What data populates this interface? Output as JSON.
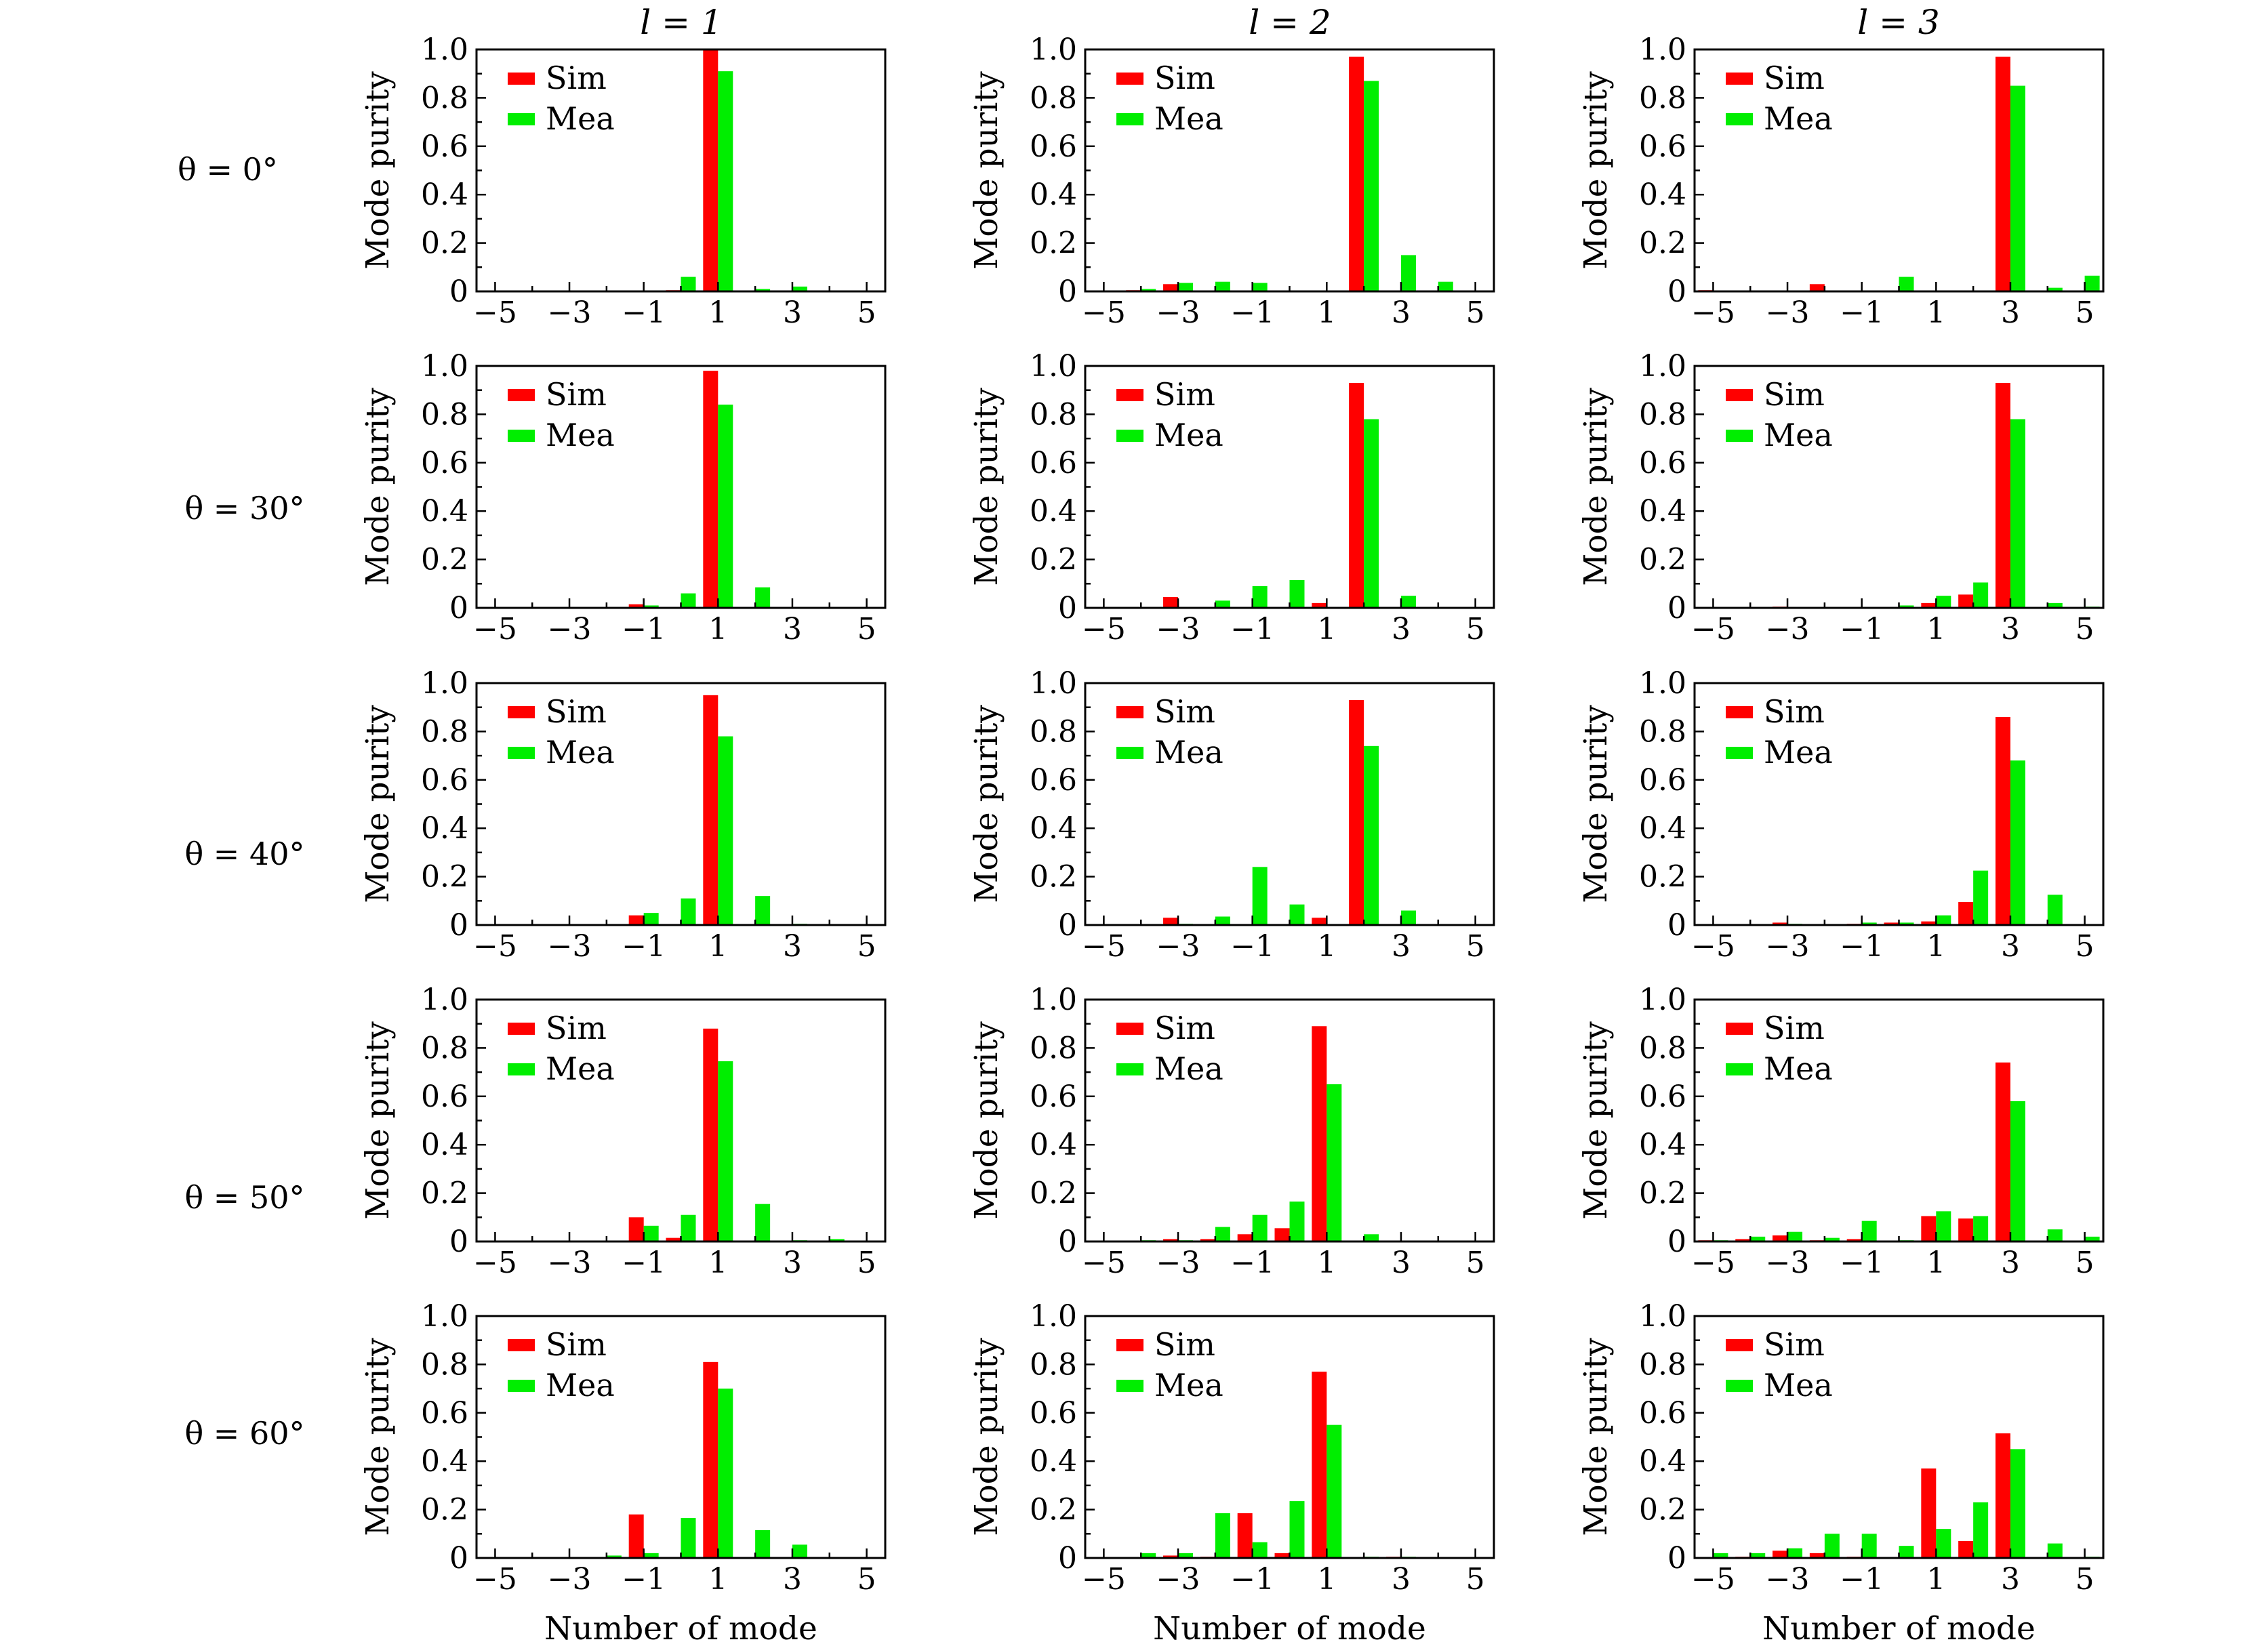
{
  "figure": {
    "column_titles": [
      "l = 1",
      "l = 2",
      "l = 3"
    ],
    "row_labels": [
      "θ = 0°",
      "θ = 30°",
      "θ = 40°",
      "θ = 50°",
      "θ = 60°"
    ],
    "series_names": [
      "Sim",
      "Mea"
    ],
    "ylabel": "Mode purity",
    "xlabel": "Number of mode",
    "colors": {
      "sim": "#ff0000",
      "mea": "#00ee00"
    }
  },
  "chart_data": [
    {
      "type": "bar",
      "row": 0,
      "col": 0,
      "title": "θ = 0°, l = 1",
      "xlabel": "Number of mode",
      "ylabel": "Mode purity",
      "categories": [
        -5,
        -4,
        -3,
        -2,
        -1,
        0,
        1,
        2,
        3,
        4,
        5
      ],
      "xticks": [
        -5,
        -3,
        -1,
        1,
        3,
        5
      ],
      "ylim": [
        0,
        1.0
      ],
      "yticks": [
        0,
        0.2,
        0.4,
        0.6,
        0.8,
        1.0
      ],
      "series": [
        {
          "name": "Sim",
          "values": [
            0,
            0,
            0,
            0,
            0,
            0.005,
            1.0,
            0.0,
            0.0,
            0,
            0
          ]
        },
        {
          "name": "Mea",
          "values": [
            0,
            0,
            0,
            0,
            0,
            0.06,
            0.91,
            0.01,
            0.02,
            0,
            0
          ]
        }
      ]
    },
    {
      "type": "bar",
      "row": 0,
      "col": 1,
      "title": "θ = 0°, l = 2",
      "xlabel": "Number of mode",
      "ylabel": "Mode purity",
      "categories": [
        -5,
        -4,
        -3,
        -2,
        -1,
        0,
        1,
        2,
        3,
        4,
        5
      ],
      "xticks": [
        -5,
        -3,
        -1,
        1,
        3,
        5
      ],
      "ylim": [
        0,
        1.0
      ],
      "yticks": [
        0,
        0.2,
        0.4,
        0.6,
        0.8,
        1.0
      ],
      "series": [
        {
          "name": "Sim",
          "values": [
            0,
            0.005,
            0.03,
            0.0,
            0.0,
            0,
            0.0,
            0.97,
            0.0,
            0,
            0
          ]
        },
        {
          "name": "Mea",
          "values": [
            0,
            0.01,
            0.035,
            0.04,
            0.035,
            0,
            0.0,
            0.87,
            0.15,
            0.04,
            0
          ]
        }
      ]
    },
    {
      "type": "bar",
      "row": 0,
      "col": 2,
      "title": "θ = 0°, l = 3",
      "xlabel": "Number of mode",
      "ylabel": "Mode purity",
      "categories": [
        -5,
        -4,
        -3,
        -2,
        -1,
        0,
        1,
        2,
        3,
        4,
        5
      ],
      "xticks": [
        -5,
        -3,
        -1,
        1,
        3,
        5
      ],
      "ylim": [
        0,
        1.0
      ],
      "yticks": [
        0,
        0.2,
        0.4,
        0.6,
        0.8,
        1.0
      ],
      "series": [
        {
          "name": "Sim",
          "values": [
            0.005,
            0,
            0,
            0.03,
            0,
            0,
            0,
            0,
            0.97,
            0,
            0
          ]
        },
        {
          "name": "Mea",
          "values": [
            0,
            0,
            0,
            0,
            0,
            0.06,
            0,
            0,
            0.85,
            0.015,
            0.065
          ]
        }
      ]
    },
    {
      "type": "bar",
      "row": 1,
      "col": 0,
      "title": "θ = 30°, l = 1",
      "xlabel": "Number of mode",
      "ylabel": "Mode purity",
      "categories": [
        -5,
        -4,
        -3,
        -2,
        -1,
        0,
        1,
        2,
        3,
        4,
        5
      ],
      "xticks": [
        -5,
        -3,
        -1,
        1,
        3,
        5
      ],
      "ylim": [
        0,
        1.0
      ],
      "yticks": [
        0,
        0.2,
        0.4,
        0.6,
        0.8,
        1.0
      ],
      "series": [
        {
          "name": "Sim",
          "values": [
            0,
            0,
            0,
            0,
            0.015,
            0.0,
            0.98,
            0.0,
            0,
            0,
            0
          ]
        },
        {
          "name": "Mea",
          "values": [
            0,
            0,
            0,
            0,
            0.01,
            0.06,
            0.84,
            0.085,
            0,
            0,
            0
          ]
        }
      ]
    },
    {
      "type": "bar",
      "row": 1,
      "col": 1,
      "title": "θ = 30°, l = 2",
      "xlabel": "Number of mode",
      "ylabel": "Mode purity",
      "categories": [
        -5,
        -4,
        -3,
        -2,
        -1,
        0,
        1,
        2,
        3,
        4,
        5
      ],
      "xticks": [
        -5,
        -3,
        -1,
        1,
        3,
        5
      ],
      "ylim": [
        0,
        1.0
      ],
      "yticks": [
        0,
        0.2,
        0.4,
        0.6,
        0.8,
        1.0
      ],
      "series": [
        {
          "name": "Sim",
          "values": [
            0,
            0,
            0.045,
            0,
            0,
            0,
            0.02,
            0.93,
            0,
            0,
            0
          ]
        },
        {
          "name": "Mea",
          "values": [
            0,
            0,
            0,
            0.03,
            0.09,
            0.115,
            0,
            0.78,
            0.05,
            0,
            0
          ]
        }
      ]
    },
    {
      "type": "bar",
      "row": 1,
      "col": 2,
      "title": "θ = 30°, l = 3",
      "xlabel": "Number of mode",
      "ylabel": "Mode purity",
      "categories": [
        -5,
        -4,
        -3,
        -2,
        -1,
        0,
        1,
        2,
        3,
        4,
        5
      ],
      "xticks": [
        -5,
        -3,
        -1,
        1,
        3,
        5
      ],
      "ylim": [
        0,
        1.0
      ],
      "yticks": [
        0,
        0.2,
        0.4,
        0.6,
        0.8,
        1.0
      ],
      "series": [
        {
          "name": "Sim",
          "values": [
            0,
            0,
            0.005,
            0,
            0,
            0,
            0.02,
            0.055,
            0.93,
            0,
            0
          ]
        },
        {
          "name": "Mea",
          "values": [
            0,
            0,
            0,
            0,
            0,
            0.01,
            0.05,
            0.105,
            0.78,
            0.02,
            0.005
          ]
        }
      ]
    },
    {
      "type": "bar",
      "row": 2,
      "col": 0,
      "title": "θ = 40°, l = 1",
      "xlabel": "Number of mode",
      "ylabel": "Mode purity",
      "categories": [
        -5,
        -4,
        -3,
        -2,
        -1,
        0,
        1,
        2,
        3,
        4,
        5
      ],
      "xticks": [
        -5,
        -3,
        -1,
        1,
        3,
        5
      ],
      "ylim": [
        0,
        1.0
      ],
      "yticks": [
        0,
        0.2,
        0.4,
        0.6,
        0.8,
        1.0
      ],
      "series": [
        {
          "name": "Sim",
          "values": [
            0,
            0,
            0,
            0,
            0.04,
            0.0,
            0.95,
            0.0,
            0,
            0,
            0
          ]
        },
        {
          "name": "Mea",
          "values": [
            0,
            0,
            0,
            0,
            0.05,
            0.11,
            0.78,
            0.12,
            0.005,
            0,
            0
          ]
        }
      ]
    },
    {
      "type": "bar",
      "row": 2,
      "col": 1,
      "title": "θ = 40°, l = 2",
      "xlabel": "Number of mode",
      "ylabel": "Mode purity",
      "categories": [
        -5,
        -4,
        -3,
        -2,
        -1,
        0,
        1,
        2,
        3,
        4,
        5
      ],
      "xticks": [
        -5,
        -3,
        -1,
        1,
        3,
        5
      ],
      "ylim": [
        0,
        1.0
      ],
      "yticks": [
        0,
        0.2,
        0.4,
        0.6,
        0.8,
        1.0
      ],
      "series": [
        {
          "name": "Sim",
          "values": [
            0,
            0,
            0.03,
            0,
            0,
            0,
            0.03,
            0.93,
            0,
            0,
            0
          ]
        },
        {
          "name": "Mea",
          "values": [
            0,
            0,
            0.005,
            0.035,
            0.24,
            0.085,
            0,
            0.74,
            0.06,
            0,
            0
          ]
        }
      ]
    },
    {
      "type": "bar",
      "row": 2,
      "col": 2,
      "title": "θ = 40°, l = 3",
      "xlabel": "Number of mode",
      "ylabel": "Mode purity",
      "categories": [
        -5,
        -4,
        -3,
        -2,
        -1,
        0,
        1,
        2,
        3,
        4,
        5
      ],
      "xticks": [
        -5,
        -3,
        -1,
        1,
        3,
        5
      ],
      "ylim": [
        0,
        1.0
      ],
      "yticks": [
        0,
        0.2,
        0.4,
        0.6,
        0.8,
        1.0
      ],
      "series": [
        {
          "name": "Sim",
          "values": [
            0,
            0,
            0.01,
            0,
            0.005,
            0.01,
            0.015,
            0.095,
            0.86,
            0,
            0
          ]
        },
        {
          "name": "Mea",
          "values": [
            0,
            0,
            0.005,
            0,
            0.01,
            0.01,
            0.04,
            0.225,
            0.68,
            0.125,
            0
          ]
        }
      ]
    },
    {
      "type": "bar",
      "row": 3,
      "col": 0,
      "title": "θ = 50°, l = 1",
      "xlabel": "Number of mode",
      "ylabel": "Mode purity",
      "categories": [
        -5,
        -4,
        -3,
        -2,
        -1,
        0,
        1,
        2,
        3,
        4,
        5
      ],
      "xticks": [
        -5,
        -3,
        -1,
        1,
        3,
        5
      ],
      "ylim": [
        0,
        1.0
      ],
      "yticks": [
        0,
        0.2,
        0.4,
        0.6,
        0.8,
        1.0
      ],
      "series": [
        {
          "name": "Sim",
          "values": [
            0,
            0,
            0,
            0,
            0.1,
            0.015,
            0.88,
            0.0,
            0.0,
            0,
            0
          ]
        },
        {
          "name": "Mea",
          "values": [
            0,
            0,
            0,
            0,
            0.065,
            0.11,
            0.745,
            0.155,
            0.005,
            0.01,
            0
          ]
        }
      ]
    },
    {
      "type": "bar",
      "row": 3,
      "col": 1,
      "title": "θ = 50°, l = 2",
      "xlabel": "Number of mode",
      "ylabel": "Mode purity",
      "categories": [
        -5,
        -4,
        -3,
        -2,
        -1,
        0,
        1,
        2,
        3,
        4,
        5
      ],
      "xticks": [
        -5,
        -3,
        -1,
        1,
        3,
        5
      ],
      "ylim": [
        0,
        1.0
      ],
      "yticks": [
        0,
        0.2,
        0.4,
        0.6,
        0.8,
        1.0
      ],
      "series": [
        {
          "name": "Sim",
          "values": [
            0,
            0,
            0.01,
            0.01,
            0.03,
            0.055,
            0.89,
            0,
            0,
            0,
            0
          ]
        },
        {
          "name": "Mea",
          "values": [
            0,
            0.005,
            0.005,
            0.06,
            0.11,
            0.165,
            0.65,
            0.03,
            0,
            0,
            0
          ]
        }
      ]
    },
    {
      "type": "bar",
      "row": 3,
      "col": 2,
      "title": "θ = 50°, l = 3",
      "xlabel": "Number of mode",
      "ylabel": "Mode purity",
      "categories": [
        -5,
        -4,
        -3,
        -2,
        -1,
        0,
        1,
        2,
        3,
        4,
        5
      ],
      "xticks": [
        -5,
        -3,
        -1,
        1,
        3,
        5
      ],
      "ylim": [
        0,
        1.0
      ],
      "yticks": [
        0,
        0.2,
        0.4,
        0.6,
        0.8,
        1.0
      ],
      "series": [
        {
          "name": "Sim",
          "values": [
            0.005,
            0.01,
            0.025,
            0.005,
            0.01,
            0.0,
            0.105,
            0.095,
            0.74,
            0,
            0
          ]
        },
        {
          "name": "Mea",
          "values": [
            0.005,
            0.02,
            0.04,
            0.015,
            0.085,
            0.005,
            0.125,
            0.105,
            0.58,
            0.05,
            0.02
          ]
        }
      ]
    },
    {
      "type": "bar",
      "row": 4,
      "col": 0,
      "title": "θ = 60°, l = 1",
      "xlabel": "Number of mode",
      "ylabel": "Mode purity",
      "categories": [
        -5,
        -4,
        -3,
        -2,
        -1,
        0,
        1,
        2,
        3,
        4,
        5
      ],
      "xticks": [
        -5,
        -3,
        -1,
        1,
        3,
        5
      ],
      "ylim": [
        0,
        1.0
      ],
      "yticks": [
        0,
        0.2,
        0.4,
        0.6,
        0.8,
        1.0
      ],
      "series": [
        {
          "name": "Sim",
          "values": [
            0,
            0,
            0,
            0,
            0.18,
            0.0,
            0.81,
            0.0,
            0,
            0,
            0
          ]
        },
        {
          "name": "Mea",
          "values": [
            0,
            0,
            0,
            0.01,
            0.02,
            0.165,
            0.7,
            0.115,
            0.055,
            0,
            0
          ]
        }
      ]
    },
    {
      "type": "bar",
      "row": 4,
      "col": 1,
      "title": "θ = 60°, l = 2",
      "xlabel": "Number of mode",
      "ylabel": "Mode purity",
      "categories": [
        -5,
        -4,
        -3,
        -2,
        -1,
        0,
        1,
        2,
        3,
        4,
        5
      ],
      "xticks": [
        -5,
        -3,
        -1,
        1,
        3,
        5
      ],
      "ylim": [
        0,
        1.0
      ],
      "yticks": [
        0,
        0.2,
        0.4,
        0.6,
        0.8,
        1.0
      ],
      "series": [
        {
          "name": "Sim",
          "values": [
            0,
            0,
            0.01,
            0.005,
            0.185,
            0.02,
            0.77,
            0,
            0.005,
            0,
            0
          ]
        },
        {
          "name": "Mea",
          "values": [
            0,
            0.02,
            0.02,
            0.185,
            0.065,
            0.235,
            0.55,
            0.005,
            0.005,
            0,
            0
          ]
        }
      ]
    },
    {
      "type": "bar",
      "row": 4,
      "col": 2,
      "title": "θ = 60°, l = 3",
      "xlabel": "Number of mode",
      "ylabel": "Mode purity",
      "categories": [
        -5,
        -4,
        -3,
        -2,
        -1,
        0,
        1,
        2,
        3,
        4,
        5
      ],
      "xticks": [
        -5,
        -3,
        -1,
        1,
        3,
        5
      ],
      "ylim": [
        0,
        1.0
      ],
      "yticks": [
        0,
        0.2,
        0.4,
        0.6,
        0.8,
        1.0
      ],
      "series": [
        {
          "name": "Sim",
          "values": [
            0,
            0.005,
            0.03,
            0.02,
            0.005,
            0.0,
            0.37,
            0.07,
            0.515,
            0,
            0
          ]
        },
        {
          "name": "Mea",
          "values": [
            0.02,
            0.02,
            0.04,
            0.1,
            0.1,
            0.05,
            0.12,
            0.23,
            0.45,
            0.06,
            0.005
          ]
        }
      ]
    }
  ]
}
